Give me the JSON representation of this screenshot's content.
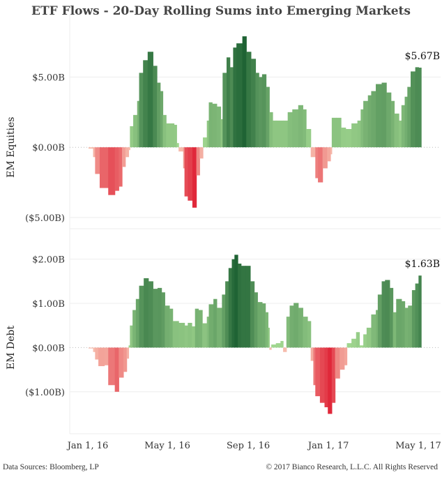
{
  "title": "ETF Flows - 20-Day Rolling Sums into Emerging Markets",
  "footer": {
    "left": "Data Sources: Bloomberg, LP",
    "right": "© 2017 Bianco Research, L.L.C. All Rights Reserved"
  },
  "colors": {
    "pos_light": "#a3d891",
    "pos_dark": "#1f6334",
    "neg_light": "#f7c0b0",
    "neg_dark": "#e0283a"
  },
  "chart_data": [
    {
      "type": "bar",
      "title": "EM Equities",
      "ylabel": "EM Equities",
      "x_unit": "days since Jan 1, 2016",
      "ylim": [
        -5.8,
        8.5
      ],
      "yticks": [
        {
          "v": 5,
          "label": "$5.00B"
        },
        {
          "v": 0,
          "label": "$0.00B"
        },
        {
          "v": -5,
          "label": "($5.00B)"
        }
      ],
      "last_label": "$5.67B",
      "points": [
        [
          1,
          -0.1
        ],
        [
          8,
          -0.7
        ],
        [
          11,
          -1.9
        ],
        [
          18,
          -2.9
        ],
        [
          31,
          -3.4
        ],
        [
          41,
          -3.1
        ],
        [
          47,
          -2.8
        ],
        [
          52,
          -1.4
        ],
        [
          57,
          -0.7
        ],
        [
          62,
          -0.2
        ],
        [
          64,
          1.5
        ],
        [
          69,
          2.3
        ],
        [
          75,
          3.3
        ],
        [
          78,
          5.3
        ],
        [
          84,
          6.2
        ],
        [
          91,
          6.8
        ],
        [
          99,
          5.8
        ],
        [
          105,
          4.6
        ],
        [
          110,
          4.0
        ],
        [
          114,
          2.3
        ],
        [
          119,
          1.7
        ],
        [
          131,
          1.6
        ],
        [
          135,
          0.3
        ],
        [
          138,
          -0.3
        ],
        [
          145,
          -1.5
        ],
        [
          147,
          -3.5
        ],
        [
          152,
          -3.8
        ],
        [
          159,
          -4.3
        ],
        [
          165,
          -2.0
        ],
        [
          170,
          -0.8
        ],
        [
          175,
          0.7
        ],
        [
          181,
          1.9
        ],
        [
          184,
          3.2
        ],
        [
          189,
          3.1
        ],
        [
          196,
          2.9
        ],
        [
          202,
          2.0
        ],
        [
          205,
          5.3
        ],
        [
          211,
          6.4
        ],
        [
          216,
          5.7
        ],
        [
          221,
          7.1
        ],
        [
          226,
          7.4
        ],
        [
          235,
          7.9
        ],
        [
          241,
          6.8
        ],
        [
          248,
          6.3
        ],
        [
          255,
          5.3
        ],
        [
          260,
          5.0
        ],
        [
          265,
          5.2
        ],
        [
          271,
          4.3
        ],
        [
          276,
          2.5
        ],
        [
          281,
          1.9
        ],
        [
          286,
          1.9
        ],
        [
          297,
          1.9
        ],
        [
          304,
          2.5
        ],
        [
          311,
          2.7
        ],
        [
          320,
          3.0
        ],
        [
          327,
          2.7
        ],
        [
          332,
          1.3
        ],
        [
          336,
          1.3
        ],
        [
          339,
          -0.7
        ],
        [
          346,
          -2.2
        ],
        [
          350,
          -2.5
        ],
        [
          357,
          -1.5
        ],
        [
          364,
          -1.0
        ],
        [
          369,
          -0.5
        ],
        [
          371,
          2.1
        ],
        [
          378,
          2.1
        ],
        [
          385,
          1.4
        ],
        [
          392,
          1.3
        ],
        [
          401,
          1.7
        ],
        [
          410,
          1.9
        ],
        [
          415,
          2.7
        ],
        [
          419,
          3.3
        ],
        [
          426,
          3.7
        ],
        [
          431,
          4.0
        ],
        [
          438,
          4.5
        ],
        [
          447,
          4.6
        ],
        [
          454,
          3.9
        ],
        [
          461,
          3.3
        ],
        [
          466,
          2.4
        ],
        [
          473,
          1.9
        ],
        [
          477,
          3.0
        ],
        [
          482,
          3.6
        ],
        [
          486,
          4.3
        ],
        [
          491,
          5.4
        ],
        [
          498,
          5.7
        ],
        [
          503,
          5.67
        ]
      ]
    },
    {
      "type": "bar",
      "title": "EM Debt",
      "ylabel": "EM Debt",
      "x_unit": "days since Jan 1, 2016",
      "ylim": [
        -1.95,
        2.5
      ],
      "yticks": [
        {
          "v": 2,
          "label": "$2.00B"
        },
        {
          "v": 1,
          "label": "$1.00B"
        },
        {
          "v": 0,
          "label": "$0.00B"
        },
        {
          "v": -1,
          "label": "($1.00B)"
        }
      ],
      "last_label": "$1.63B",
      "points": [
        [
          1,
          -0.02
        ],
        [
          8,
          -0.1
        ],
        [
          11,
          -0.27
        ],
        [
          16,
          -0.42
        ],
        [
          25,
          -0.4
        ],
        [
          31,
          -0.85
        ],
        [
          41,
          -1.0
        ],
        [
          47,
          -0.68
        ],
        [
          54,
          -0.55
        ],
        [
          59,
          -0.25
        ],
        [
          62,
          0.05
        ],
        [
          64,
          0.5
        ],
        [
          68,
          0.85
        ],
        [
          73,
          1.1
        ],
        [
          78,
          1.4
        ],
        [
          85,
          1.57
        ],
        [
          92,
          1.5
        ],
        [
          99,
          1.33
        ],
        [
          106,
          1.35
        ],
        [
          112,
          1.25
        ],
        [
          117,
          0.95
        ],
        [
          124,
          0.88
        ],
        [
          129,
          0.6
        ],
        [
          138,
          0.56
        ],
        [
          147,
          0.5
        ],
        [
          152,
          0.56
        ],
        [
          158,
          0.48
        ],
        [
          163,
          0.88
        ],
        [
          168,
          0.85
        ],
        [
          174,
          0.55
        ],
        [
          181,
          0.7
        ],
        [
          184,
          0.98
        ],
        [
          191,
          1.1
        ],
        [
          196,
          0.9
        ],
        [
          204,
          1.2
        ],
        [
          209,
          1.5
        ],
        [
          214,
          1.8
        ],
        [
          219,
          2.0
        ],
        [
          223,
          2.1
        ],
        [
          228,
          1.9
        ],
        [
          233,
          1.85
        ],
        [
          240,
          1.85
        ],
        [
          247,
          1.5
        ],
        [
          253,
          1.25
        ],
        [
          258,
          1.03
        ],
        [
          265,
          1.0
        ],
        [
          270,
          0.8
        ],
        [
          274,
          0.45
        ],
        [
          276,
          -0.05
        ],
        [
          279,
          0.07
        ],
        [
          286,
          0.1
        ],
        [
          293,
          0.15
        ],
        [
          297,
          -0.1
        ],
        [
          302,
          0.7
        ],
        [
          307,
          0.95
        ],
        [
          313,
          1.01
        ],
        [
          320,
          0.9
        ],
        [
          327,
          0.7
        ],
        [
          334,
          0.6
        ],
        [
          339,
          -0.3
        ],
        [
          343,
          -0.85
        ],
        [
          346,
          -1.1
        ],
        [
          353,
          -1.25
        ],
        [
          360,
          -1.35
        ],
        [
          365,
          -1.5
        ],
        [
          371,
          -1.25
        ],
        [
          376,
          -0.7
        ],
        [
          383,
          -0.5
        ],
        [
          390,
          -0.4
        ],
        [
          394,
          0.1
        ],
        [
          401,
          0.2
        ],
        [
          408,
          0.35
        ],
        [
          413,
          0.05
        ],
        [
          419,
          0.3
        ],
        [
          424,
          0.45
        ],
        [
          431,
          0.75
        ],
        [
          438,
          0.85
        ],
        [
          441,
          1.2
        ],
        [
          447,
          1.5
        ],
        [
          452,
          1.53
        ],
        [
          459,
          1.35
        ],
        [
          464,
          0.8
        ],
        [
          469,
          1.1
        ],
        [
          477,
          1.05
        ],
        [
          482,
          0.9
        ],
        [
          487,
          0.95
        ],
        [
          493,
          1.3
        ],
        [
          498,
          1.45
        ],
        [
          503,
          1.63
        ]
      ]
    }
  ],
  "xaxis": {
    "ticks": [
      {
        "day": 0,
        "label": "Jan 1, 16"
      },
      {
        "day": 121,
        "label": "May 1, 16"
      },
      {
        "day": 244,
        "label": "Sep 1, 16"
      },
      {
        "day": 366,
        "label": "Jan 1, 17"
      },
      {
        "day": 486,
        "label": "May 1, 17"
      }
    ]
  }
}
